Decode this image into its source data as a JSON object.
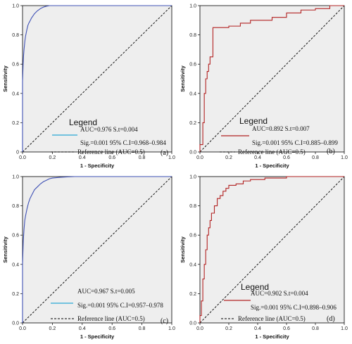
{
  "figure": {
    "background": "#ffffff",
    "plot_background": "#eeeeee",
    "reference_color": "#000000"
  },
  "chart_data": [
    {
      "type": "line",
      "panel": "(a)",
      "xlabel": "1 - Specificity",
      "ylabel": "Sensitivity",
      "xlim": [
        0,
        1
      ],
      "ylim": [
        0,
        1
      ],
      "x_ticks": [
        "0.0",
        "0.2",
        "0.4",
        "0.6",
        "0.8",
        "1.0"
      ],
      "y_ticks": [
        "0",
        "0.2",
        "0.4",
        "0.6",
        "0.8",
        "1.0"
      ],
      "grid": false,
      "legend_title": "Legend",
      "legend_lines": [
        "AUC=0.976 S.t=0.004",
        "Sig.=0.001 95% C.I=0.968–0.984"
      ],
      "reference_label": "Reference line (AUC=0.5)",
      "roc_color": "#3f51b5",
      "legend_swatch_color": "#29a9d4",
      "series": [
        {
          "x": [
            0,
            0,
            0.004,
            0.007,
            0.01,
            0.013,
            0.016,
            0.02,
            0.025,
            0.03,
            0.036,
            0.042,
            0.05,
            0.06,
            0.07,
            0.08,
            0.09,
            0.1,
            0.11,
            0.12,
            0.13,
            0.14,
            0.15,
            0.16,
            0.17,
            0.18,
            0.19,
            0.2,
            1.0
          ],
          "y": [
            0,
            0.48,
            0.6,
            0.66,
            0.7,
            0.73,
            0.76,
            0.79,
            0.815,
            0.84,
            0.865,
            0.88,
            0.895,
            0.915,
            0.93,
            0.945,
            0.955,
            0.965,
            0.972,
            0.98,
            0.985,
            0.99,
            0.993,
            0.996,
            0.998,
            1.0,
            1.0,
            1.0,
            1.0
          ]
        }
      ]
    },
    {
      "type": "line",
      "panel": "(b)",
      "xlabel": "1 - Specificity",
      "ylabel": "Sensitivity",
      "xlim": [
        0,
        1
      ],
      "ylim": [
        0,
        1
      ],
      "x_ticks": [
        "0.0",
        "0.2",
        "0.4",
        "0.6",
        "0.8",
        "1.0"
      ],
      "y_ticks": [
        "0.0",
        "0.2",
        "0.4",
        "0.6",
        "0.8",
        "1.0"
      ],
      "grid": false,
      "legend_title": "Legend",
      "legend_lines": [
        "AUC=0.892 S.t=0.007",
        "Sig.=0.001 95% C.I=0.885–0.899"
      ],
      "reference_label": "Reference line (AUC=0.5)",
      "roc_color": "#b22222",
      "legend_swatch_color": "#b22222",
      "series": [
        {
          "x": [
            0,
            0,
            0.02,
            0.02,
            0.03,
            0.03,
            0.04,
            0.04,
            0.05,
            0.05,
            0.06,
            0.06,
            0.07,
            0.07,
            0.09,
            0.09,
            0.2,
            0.2,
            0.28,
            0.28,
            0.35,
            0.35,
            0.5,
            0.5,
            0.6,
            0.6,
            0.7,
            0.7,
            0.8,
            0.8,
            0.9,
            0.9,
            1.0
          ],
          "y": [
            0,
            0.05,
            0.05,
            0.2,
            0.2,
            0.4,
            0.4,
            0.5,
            0.5,
            0.55,
            0.55,
            0.6,
            0.6,
            0.65,
            0.65,
            0.85,
            0.85,
            0.86,
            0.86,
            0.88,
            0.88,
            0.9,
            0.9,
            0.92,
            0.92,
            0.95,
            0.95,
            0.97,
            0.97,
            0.98,
            0.98,
            1.0,
            1.0
          ]
        }
      ]
    },
    {
      "type": "line",
      "panel": "(c)",
      "xlabel": "1 - Specificity",
      "ylabel": "Sensitivity",
      "xlim": [
        0,
        1
      ],
      "ylim": [
        0,
        1
      ],
      "x_ticks": [
        "0.0",
        "0.2",
        "0.4",
        "0.6",
        "0.8",
        "1.0"
      ],
      "y_ticks": [
        "0.0",
        "0.2",
        "0.4",
        "0.6",
        "0.8",
        "1.0"
      ],
      "grid": false,
      "legend_title": "",
      "legend_lines": [
        "AUC=0.967 S.t=0.005",
        "Sig.=0.001 95% C.I=0.957–0.978"
      ],
      "reference_label": "Reference line (AUC=0.5)",
      "roc_color": "#3f51b5",
      "legend_swatch_color": "#29a9d4",
      "series": [
        {
          "x": [
            0,
            0,
            0.005,
            0.01,
            0.015,
            0.02,
            0.03,
            0.04,
            0.05,
            0.06,
            0.07,
            0.08,
            0.1,
            0.12,
            0.14,
            0.16,
            0.18,
            0.2,
            0.25,
            0.3,
            0.35,
            0.4,
            1.0
          ],
          "y": [
            0,
            0.4,
            0.56,
            0.64,
            0.7,
            0.73,
            0.78,
            0.82,
            0.85,
            0.87,
            0.89,
            0.91,
            0.93,
            0.95,
            0.965,
            0.975,
            0.985,
            0.99,
            0.995,
            0.998,
            1.0,
            1.0,
            1.0
          ]
        }
      ]
    },
    {
      "type": "line",
      "panel": "(d)",
      "xlabel": "1 - Specificity",
      "ylabel": "Sensitivity",
      "xlim": [
        0,
        1
      ],
      "ylim": [
        0,
        1
      ],
      "x_ticks": [
        "0.0",
        "0.2",
        "0.4",
        "0.6",
        "0.8",
        "1.0"
      ],
      "y_ticks": [
        "0.0",
        "0.2",
        "0.4",
        "0.6",
        "0.8",
        "1.0"
      ],
      "grid": false,
      "legend_title": "Legend",
      "legend_lines": [
        "AUC=0.902 S.t=0.004",
        "Sig.=0.001 95% C.I=0.898–0.906"
      ],
      "reference_label": "Reference line (AUC=0.5)",
      "roc_color": "#b22222",
      "legend_swatch_color": "#b22222",
      "series": [
        {
          "x": [
            0,
            0,
            0.01,
            0.01,
            0.02,
            0.02,
            0.03,
            0.03,
            0.04,
            0.04,
            0.05,
            0.05,
            0.06,
            0.06,
            0.07,
            0.07,
            0.08,
            0.08,
            0.1,
            0.1,
            0.12,
            0.12,
            0.14,
            0.14,
            0.16,
            0.16,
            0.18,
            0.18,
            0.2,
            0.2,
            0.25,
            0.25,
            0.3,
            0.3,
            0.35,
            0.35,
            0.45,
            0.45,
            0.6,
            0.6,
            1.0
          ],
          "y": [
            0,
            0.05,
            0.05,
            0.15,
            0.15,
            0.3,
            0.3,
            0.4,
            0.4,
            0.5,
            0.5,
            0.6,
            0.6,
            0.65,
            0.65,
            0.7,
            0.7,
            0.75,
            0.75,
            0.8,
            0.8,
            0.85,
            0.85,
            0.87,
            0.87,
            0.9,
            0.9,
            0.92,
            0.92,
            0.94,
            0.94,
            0.95,
            0.95,
            0.97,
            0.97,
            0.98,
            0.98,
            0.99,
            0.99,
            1.0,
            1.0
          ]
        }
      ]
    }
  ]
}
